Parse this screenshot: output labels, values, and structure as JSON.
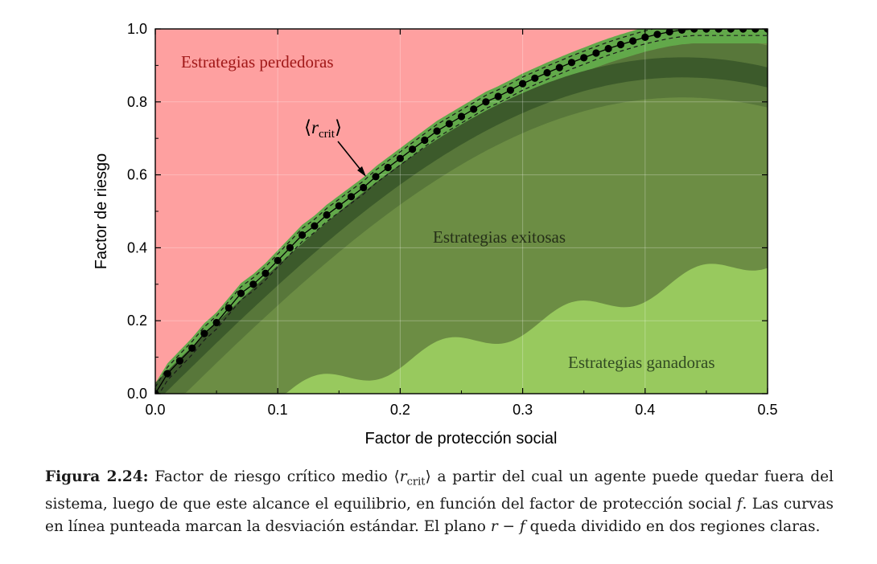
{
  "colors": {
    "losing_region": "#fea0a0",
    "curve_band": "#62a94a",
    "winning_region": "#98c95e",
    "successful_region": "#6c8d44",
    "inner_band": "#58773a",
    "core_band": "#3c5a2b",
    "marker": "#000000"
  },
  "chart_data": {
    "type": "line",
    "xlabel": "Factor de protección social",
    "ylabel": "Factor de riesgo",
    "xlim": [
      0.0,
      0.5
    ],
    "ylim": [
      0.0,
      1.0
    ],
    "x_ticks": [
      "0.0",
      "0.1",
      "0.2",
      "0.3",
      "0.4",
      "0.5"
    ],
    "y_ticks": [
      "0.0",
      "0.2",
      "0.4",
      "0.6",
      "0.8",
      "1.0"
    ],
    "grid": true,
    "series": [
      {
        "name": "⟨r_crit⟩",
        "style": "dotted markers with dashed standard deviation curves",
        "x": [
          0.0,
          0.01,
          0.02,
          0.03,
          0.04,
          0.05,
          0.06,
          0.07,
          0.08,
          0.09,
          0.1,
          0.11,
          0.12,
          0.13,
          0.14,
          0.15,
          0.16,
          0.17,
          0.18,
          0.19,
          0.2,
          0.21,
          0.22,
          0.23,
          0.24,
          0.25,
          0.26,
          0.27,
          0.28,
          0.29,
          0.3,
          0.31,
          0.32,
          0.33,
          0.34,
          0.35,
          0.36,
          0.37,
          0.38,
          0.39,
          0.4,
          0.41,
          0.42,
          0.43,
          0.44,
          0.45,
          0.46,
          0.47,
          0.48,
          0.49,
          0.5
        ],
        "y": [
          0.0,
          0.055,
          0.09,
          0.125,
          0.165,
          0.195,
          0.235,
          0.275,
          0.3,
          0.33,
          0.365,
          0.4,
          0.435,
          0.46,
          0.49,
          0.515,
          0.54,
          0.565,
          0.595,
          0.62,
          0.645,
          0.67,
          0.695,
          0.72,
          0.74,
          0.76,
          0.78,
          0.8,
          0.815,
          0.832,
          0.85,
          0.865,
          0.88,
          0.894,
          0.908,
          0.921,
          0.934,
          0.946,
          0.957,
          0.967,
          0.977,
          0.985,
          0.992,
          0.997,
          1.0,
          1.0,
          1.0,
          1.0,
          1.0,
          1.0,
          1.0
        ],
        "sd": 0.018
      }
    ],
    "annotations": {
      "losing": "Estrategias perdedoras",
      "successful": "Estrategias exitosas",
      "winning": "Estrategias ganadoras",
      "rcrit_open": "⟨",
      "rcrit_r": "r",
      "rcrit_sub": "crit",
      "rcrit_close": "⟩"
    }
  },
  "caption": {
    "label": "Figura 2.24:",
    "t1": " Factor de riesgo crítico medio ⟨",
    "r": "r",
    "sub": "crit",
    "t2": "⟩ a partir del cual un agente puede quedar fuera del sistema, luego de que este alcance el equilibrio, en función del factor de protección social ",
    "f": "f",
    "t3": ". Las curvas en línea punteada marcan la desviación estándar. El plano ",
    "rf": "r − f",
    "t4": " queda dividido en dos regiones claras."
  }
}
